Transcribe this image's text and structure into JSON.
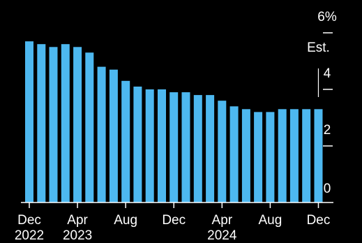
{
  "chart_data": {
    "type": "bar",
    "title": "",
    "xlabel": "",
    "ylabel": "",
    "ylim": [
      0,
      6
    ],
    "grid": false,
    "bar_color": "#4db8f0",
    "background": "#000000",
    "categories": [
      "Dec 2022",
      "Jan 2023",
      "Feb 2023",
      "Mar 2023",
      "Apr 2023",
      "May 2023",
      "Jun 2023",
      "Jul 2023",
      "Aug 2023",
      "Sep 2023",
      "Oct 2023",
      "Nov 2023",
      "Dec 2023",
      "Jan 2024",
      "Feb 2024",
      "Mar 2024",
      "Apr 2024",
      "May 2024",
      "Jun 2024",
      "Jul 2024",
      "Aug 2024",
      "Sep 2024",
      "Oct 2024",
      "Nov 2024",
      "Dec 2024"
    ],
    "values": [
      5.7,
      5.6,
      5.5,
      5.6,
      5.5,
      5.3,
      4.8,
      4.7,
      4.3,
      4.1,
      4.0,
      4.0,
      3.9,
      3.9,
      3.8,
      3.8,
      3.6,
      3.4,
      3.3,
      3.2,
      3.2,
      3.3,
      3.3,
      3.3,
      3.3
    ],
    "y_ticks": [
      {
        "value": 6,
        "label": "6%"
      },
      {
        "value": 4,
        "label": "4"
      },
      {
        "value": 2,
        "label": "2"
      },
      {
        "value": 0,
        "label": "0"
      }
    ],
    "x_ticks": [
      {
        "index": 0,
        "line1": "Dec",
        "line2": "2022"
      },
      {
        "index": 4,
        "line1": "Apr",
        "line2": "2023"
      },
      {
        "index": 8,
        "line1": "Aug",
        "line2": ""
      },
      {
        "index": 12,
        "line1": "Dec",
        "line2": ""
      },
      {
        "index": 16,
        "line1": "Apr",
        "line2": "2024"
      },
      {
        "index": 20,
        "line1": "Aug",
        "line2": ""
      },
      {
        "index": 24,
        "line1": "Dec",
        "line2": ""
      }
    ],
    "annotation": {
      "text": "Est.",
      "index": 24
    }
  }
}
